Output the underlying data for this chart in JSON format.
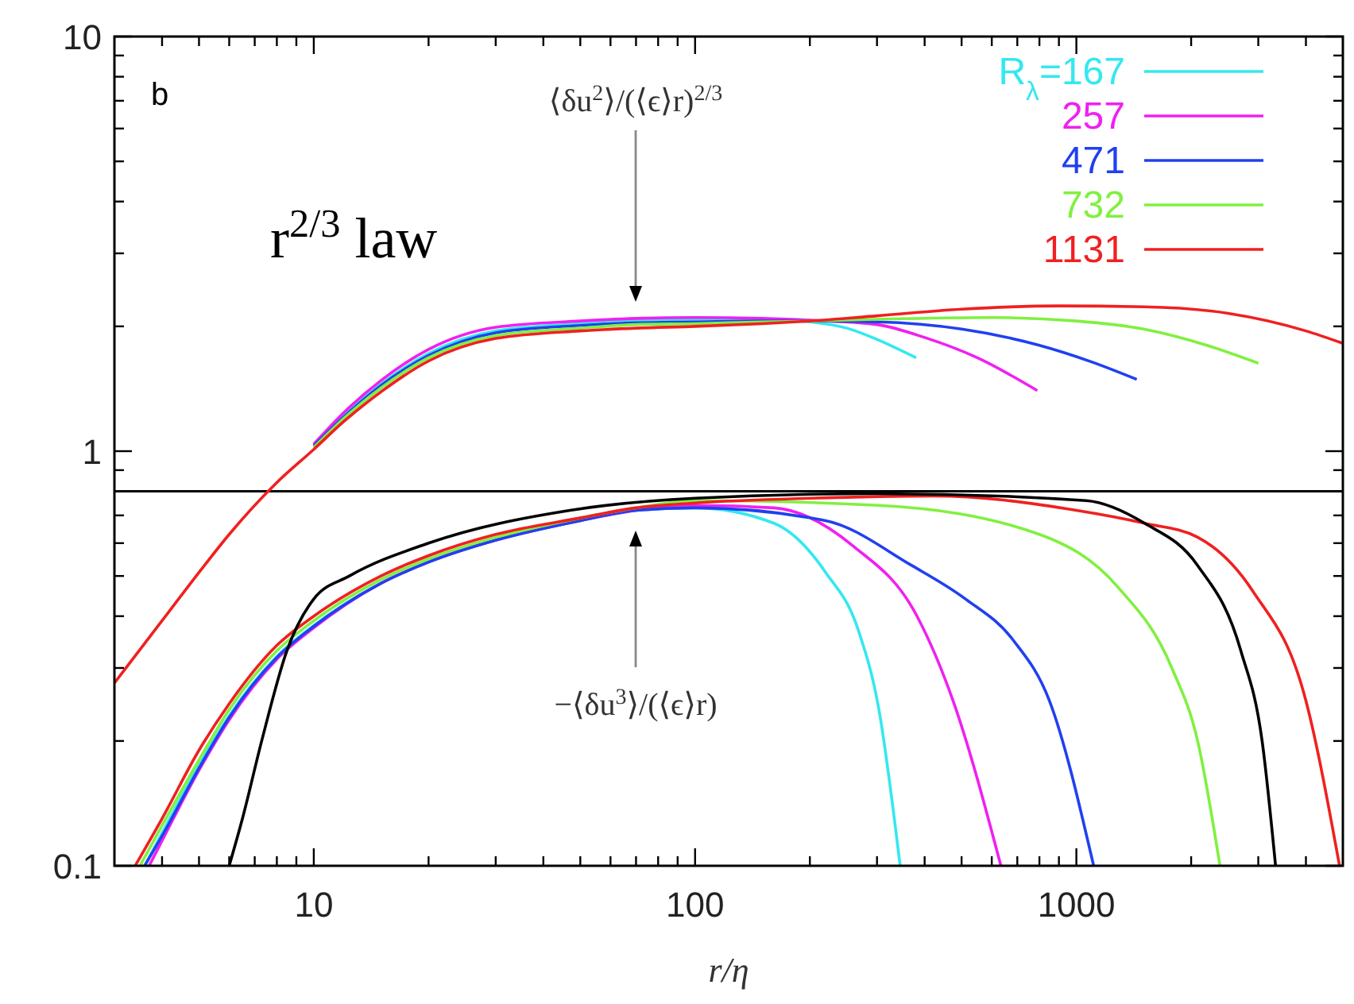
{
  "chart_data": {
    "type": "line",
    "log": "xy",
    "xlabel": "r/η",
    "xlim": [
      3,
      5000
    ],
    "ylim": [
      0.1,
      10
    ],
    "xticks": [
      {
        "value": 4,
        "label": null
      },
      {
        "value": 5,
        "label": null
      },
      {
        "value": 6,
        "label": null
      },
      {
        "value": 7,
        "label": null
      },
      {
        "value": 8,
        "label": null
      },
      {
        "value": 9,
        "label": null
      },
      10,
      {
        "value": 20,
        "label": null
      },
      {
        "value": 30,
        "label": null
      },
      {
        "value": 40,
        "label": null
      },
      {
        "value": 50,
        "label": null
      },
      {
        "value": 60,
        "label": null
      },
      {
        "value": 70,
        "label": null
      },
      {
        "value": 80,
        "label": null
      },
      {
        "value": 90,
        "label": null
      },
      100,
      {
        "value": 200,
        "label": null
      },
      {
        "value": 300,
        "label": null
      },
      {
        "value": 400,
        "label": null
      },
      {
        "value": 500,
        "label": null
      },
      {
        "value": 600,
        "label": null
      },
      {
        "value": 700,
        "label": null
      },
      {
        "value": 800,
        "label": null
      },
      {
        "value": 900,
        "label": null
      },
      1000,
      {
        "value": 2000,
        "label": null
      },
      {
        "value": 3000,
        "label": null
      },
      {
        "value": 4000,
        "label": null
      }
    ],
    "yticks": [
      0.1,
      {
        "value": 0.2,
        "label": null
      },
      {
        "value": 0.3,
        "label": null
      },
      {
        "value": 0.4,
        "label": null
      },
      {
        "value": 0.5,
        "label": null
      },
      {
        "value": 0.6,
        "label": null
      },
      {
        "value": 0.7,
        "label": null
      },
      {
        "value": 0.8,
        "label": null
      },
      {
        "value": 0.9,
        "label": null
      },
      1,
      {
        "value": 2,
        "label": null
      },
      {
        "value": 3,
        "label": null
      },
      {
        "value": 4,
        "label": null
      },
      {
        "value": 5,
        "label": null
      },
      {
        "value": 6,
        "label": null
      },
      {
        "value": 7,
        "label": null
      },
      {
        "value": 8,
        "label": null
      },
      {
        "value": 9,
        "label": null
      },
      10
    ],
    "grid": false,
    "legend": "top right",
    "marker": "none",
    "line_style": "solid",
    "ref_lines": [
      {
        "axis": "y",
        "value": 0.8,
        "color": "#000000"
      }
    ],
    "annotations": [
      "b",
      "r$^{2/3}$ law",
      "⟨δu$^{2}$⟩/(⟨ϵ⟩r)$^{2/3}$",
      "−⟨δu$^{3}$⟩/(⟨ϵ⟩r)"
    ],
    "series": [
      {
        "name": "R$_{λ}$=167",
        "color": "#33e8f0",
        "x": [
          10,
          12,
          15,
          20,
          30,
          50,
          70,
          100,
          150,
          200,
          250,
          300,
          380
        ],
        "values": [
          1.03,
          1.22,
          1.45,
          1.72,
          1.95,
          2.03,
          2.07,
          2.08,
          2.08,
          2.05,
          1.98,
          1.86,
          1.68
        ]
      },
      {
        "name": "257",
        "color": "#f020f0",
        "x": [
          10,
          12,
          15,
          20,
          30,
          50,
          70,
          100,
          150,
          200,
          300,
          400,
          550,
          790
        ],
        "values": [
          1.04,
          1.24,
          1.48,
          1.76,
          1.99,
          2.06,
          2.09,
          2.1,
          2.09,
          2.07,
          2.02,
          1.88,
          1.68,
          1.4
        ]
      },
      {
        "name": "471",
        "color": "#2040f0",
        "x": [
          10,
          12,
          15,
          20,
          30,
          50,
          70,
          100,
          150,
          200,
          300,
          500,
          800,
          1100,
          1440
        ],
        "values": [
          1.03,
          1.21,
          1.44,
          1.7,
          1.93,
          2.01,
          2.04,
          2.05,
          2.06,
          2.06,
          2.05,
          1.97,
          1.8,
          1.64,
          1.49
        ]
      },
      {
        "name": "732",
        "color": "#80f040",
        "x": [
          10,
          12,
          15,
          20,
          30,
          50,
          70,
          100,
          150,
          200,
          300,
          600,
          1000,
          1500,
          2200,
          3000
        ],
        "values": [
          1.02,
          1.2,
          1.42,
          1.68,
          1.9,
          1.98,
          2.02,
          2.03,
          2.05,
          2.06,
          2.08,
          2.1,
          2.06,
          1.97,
          1.8,
          1.63
        ]
      },
      {
        "name": "1131",
        "color": "#f02020",
        "x": [
          3,
          4,
          5,
          6,
          8,
          10,
          12,
          15,
          20,
          30,
          50,
          70,
          100,
          150,
          200,
          300,
          500,
          900,
          1500,
          2500,
          4000,
          5000
        ],
        "values": [
          0.276,
          0.39,
          0.51,
          0.63,
          0.84,
          1.01,
          1.18,
          1.39,
          1.65,
          1.87,
          1.95,
          1.98,
          2.0,
          2.03,
          2.06,
          2.12,
          2.2,
          2.24,
          2.23,
          2.15,
          1.95,
          1.82
        ]
      },
      {
        "color": "#33e8f0",
        "x": [
          3.6,
          4,
          5,
          6,
          8,
          10,
          15,
          20,
          30,
          50,
          70,
          100,
          161,
          220,
          268,
          303,
          345
        ],
        "values": [
          0.1,
          0.12,
          0.175,
          0.23,
          0.32,
          0.38,
          0.48,
          0.54,
          0.61,
          0.68,
          0.72,
          0.73,
          0.67,
          0.51,
          0.37,
          0.24,
          0.1
        ]
      },
      {
        "color": "#f020f0",
        "x": [
          3.7,
          4,
          5,
          6,
          8,
          10,
          15,
          20,
          30,
          50,
          70,
          100,
          161,
          260,
          382,
          475,
          634
        ],
        "values": [
          0.1,
          0.115,
          0.17,
          0.225,
          0.315,
          0.375,
          0.48,
          0.54,
          0.61,
          0.68,
          0.72,
          0.74,
          0.73,
          0.59,
          0.4,
          0.25,
          0.1
        ]
      },
      {
        "color": "#2040f0",
        "x": [
          3.6,
          4,
          5,
          6,
          8,
          10,
          15,
          20,
          30,
          50,
          70,
          100,
          220,
          370,
          512,
          683,
          850,
          1110
        ],
        "values": [
          0.1,
          0.118,
          0.172,
          0.228,
          0.318,
          0.378,
          0.48,
          0.54,
          0.61,
          0.68,
          0.72,
          0.73,
          0.68,
          0.53,
          0.44,
          0.35,
          0.25,
          0.1
        ]
      },
      {
        "color": "#80f040",
        "x": [
          3.5,
          4,
          5,
          6,
          8,
          10,
          15,
          20,
          30,
          50,
          70,
          100,
          303,
          800,
          1285,
          1780,
          2080,
          2380
        ],
        "values": [
          0.1,
          0.125,
          0.18,
          0.238,
          0.33,
          0.39,
          0.49,
          0.55,
          0.62,
          0.69,
          0.73,
          0.76,
          0.74,
          0.63,
          0.47,
          0.3,
          0.2,
          0.1
        ]
      },
      {
        "color": "#f02020",
        "x": [
          3.4,
          4,
          5,
          6,
          8,
          10,
          15,
          20,
          30,
          50,
          70,
          100,
          200,
          423,
          1000,
          1510,
          2080,
          2900,
          4000,
          4900
        ],
        "values": [
          0.1,
          0.13,
          0.19,
          0.246,
          0.34,
          0.4,
          0.5,
          0.56,
          0.63,
          0.69,
          0.73,
          0.75,
          0.77,
          0.78,
          0.72,
          0.67,
          0.62,
          0.46,
          0.25,
          0.1
        ]
      },
      {
        "color": "#000000",
        "x": [
          6,
          6.5,
          7.3,
          8.5,
          10,
          12.4,
          20,
          47,
          100,
          300,
          1060,
          1510,
          2080,
          2700,
          3070,
          3330
        ],
        "values": [
          0.1,
          0.13,
          0.2,
          0.33,
          0.44,
          0.5,
          0.6,
          0.72,
          0.77,
          0.79,
          0.76,
          0.67,
          0.53,
          0.33,
          0.2,
          0.1
        ]
      }
    ]
  }
}
